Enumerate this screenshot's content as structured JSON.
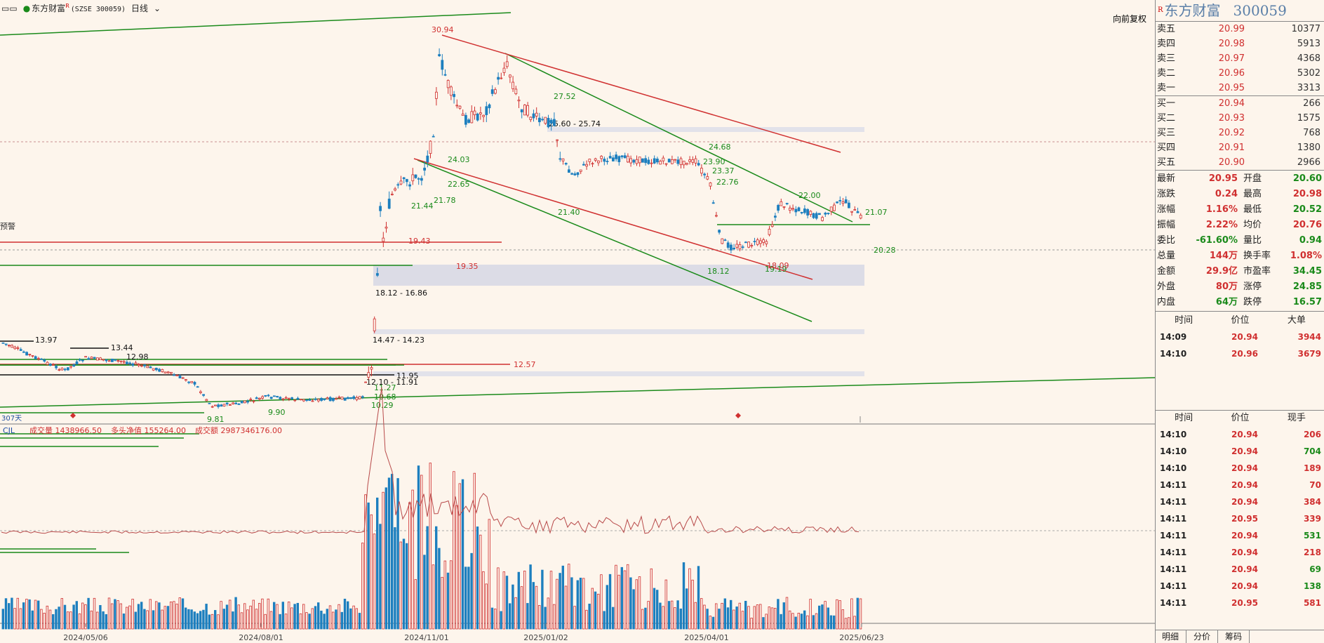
{
  "header": {
    "stock_name": "东方财富",
    "badge": "R",
    "code": "(SZSE 300059)",
    "period": "日线",
    "restore_button": "向前复权"
  },
  "quote_panel": {
    "badge": "R",
    "name": "东方财富",
    "code": "300059",
    "asks": [
      {
        "label": "卖五",
        "price": "20.99",
        "vol": "10377"
      },
      {
        "label": "卖四",
        "price": "20.98",
        "vol": "5913"
      },
      {
        "label": "卖三",
        "price": "20.97",
        "vol": "4368"
      },
      {
        "label": "卖二",
        "price": "20.96",
        "vol": "5302"
      },
      {
        "label": "卖一",
        "price": "20.95",
        "vol": "3313"
      }
    ],
    "bids": [
      {
        "label": "买一",
        "price": "20.94",
        "vol": "266"
      },
      {
        "label": "买二",
        "price": "20.93",
        "vol": "1575"
      },
      {
        "label": "买三",
        "price": "20.92",
        "vol": "768"
      },
      {
        "label": "买四",
        "price": "20.91",
        "vol": "1380"
      },
      {
        "label": "买五",
        "price": "20.90",
        "vol": "2966"
      }
    ],
    "stats": [
      {
        "k": "最新",
        "v": "20.95",
        "vc": "red",
        "k2": "开盘",
        "v2": "20.60",
        "v2c": "green"
      },
      {
        "k": "涨跌",
        "v": "0.24",
        "vc": "red",
        "k2": "最高",
        "v2": "20.98",
        "v2c": "red"
      },
      {
        "k": "涨幅",
        "v": "1.16%",
        "vc": "red",
        "k2": "最低",
        "v2": "20.52",
        "v2c": "green"
      },
      {
        "k": "振幅",
        "v": "2.22%",
        "vc": "red",
        "k2": "均价",
        "v2": "20.76",
        "v2c": "red"
      },
      {
        "k": "委比",
        "v": "-61.60%",
        "vc": "green",
        "k2": "量比",
        "v2": "0.94",
        "v2c": "green"
      },
      {
        "k": "总量",
        "v": "144万",
        "vc": "red",
        "k2": "换手率",
        "v2": "1.08%",
        "v2c": "red"
      },
      {
        "k": "金额",
        "v": "29.9亿",
        "vc": "red",
        "k2": "市盈率",
        "v2": "34.45",
        "v2c": "green"
      },
      {
        "k": "外盘",
        "v": "80万",
        "vc": "red",
        "k2": "涨停",
        "v2": "24.85",
        "v2c": "green"
      },
      {
        "k": "内盘",
        "v": "64万",
        "vc": "green",
        "k2": "跌停",
        "v2": "16.57",
        "v2c": "green"
      }
    ],
    "bigorder_headers": [
      "时间",
      "价位",
      "大单"
    ],
    "bigorders": [
      {
        "t": "14:09",
        "p": "20.94",
        "v": "3944",
        "vc": "red"
      },
      {
        "t": "14:10",
        "p": "20.96",
        "v": "3679",
        "vc": "red"
      }
    ],
    "tick_headers": [
      "时间",
      "价位",
      "现手"
    ],
    "ticks": [
      {
        "t": "14:10",
        "p": "20.94",
        "v": "206",
        "vc": "red"
      },
      {
        "t": "14:10",
        "p": "20.94",
        "v": "704",
        "vc": "green"
      },
      {
        "t": "14:10",
        "p": "20.94",
        "v": "189",
        "vc": "red"
      },
      {
        "t": "14:11",
        "p": "20.94",
        "v": "70",
        "vc": "red"
      },
      {
        "t": "14:11",
        "p": "20.94",
        "v": "384",
        "vc": "red"
      },
      {
        "t": "14:11",
        "p": "20.95",
        "v": "339",
        "vc": "red"
      },
      {
        "t": "14:11",
        "p": "20.94",
        "v": "531",
        "vc": "green"
      },
      {
        "t": "14:11",
        "p": "20.94",
        "v": "218",
        "vc": "red"
      },
      {
        "t": "14:11",
        "p": "20.94",
        "v": "69",
        "vc": "green"
      },
      {
        "t": "14:11",
        "p": "20.94",
        "v": "138",
        "vc": "green"
      },
      {
        "t": "14:11",
        "p": "20.95",
        "v": "581",
        "vc": "red"
      }
    ],
    "tabs": [
      "明细",
      "分价",
      "筹码"
    ]
  },
  "chart": {
    "price_labels": [
      "30.94",
      "27.52",
      "25.60 - 25.74",
      "24.68",
      "24.03",
      "23.90",
      "23.37",
      "22.76",
      "22.65",
      "22.00",
      "21.78",
      "21.44",
      "21.40",
      "21.07",
      "20.28",
      "19.43",
      "19.35",
      "19.19",
      "18.12",
      "18.09",
      "18.12 - 16.86",
      "14.47 - 14.23",
      "13.97",
      "13.44",
      "12.98",
      "12.57",
      "11.95",
      "12.10 - 11.91",
      "11.27",
      "10.68",
      "10.29",
      "9.90",
      "9.81"
    ],
    "side_label": "预警",
    "days_label": "307天",
    "indicator_name": "CJL",
    "volume_text": "成交量 1438966.50",
    "net_long_text": "多头净值 155264.00",
    "amount_text": "成交额 2987346176.00",
    "date_labels": [
      "2024/05/06",
      "2024/08/01",
      "2024/11/01",
      "2025/01/02",
      "2025/04/01",
      "2025/06/23"
    ]
  }
}
